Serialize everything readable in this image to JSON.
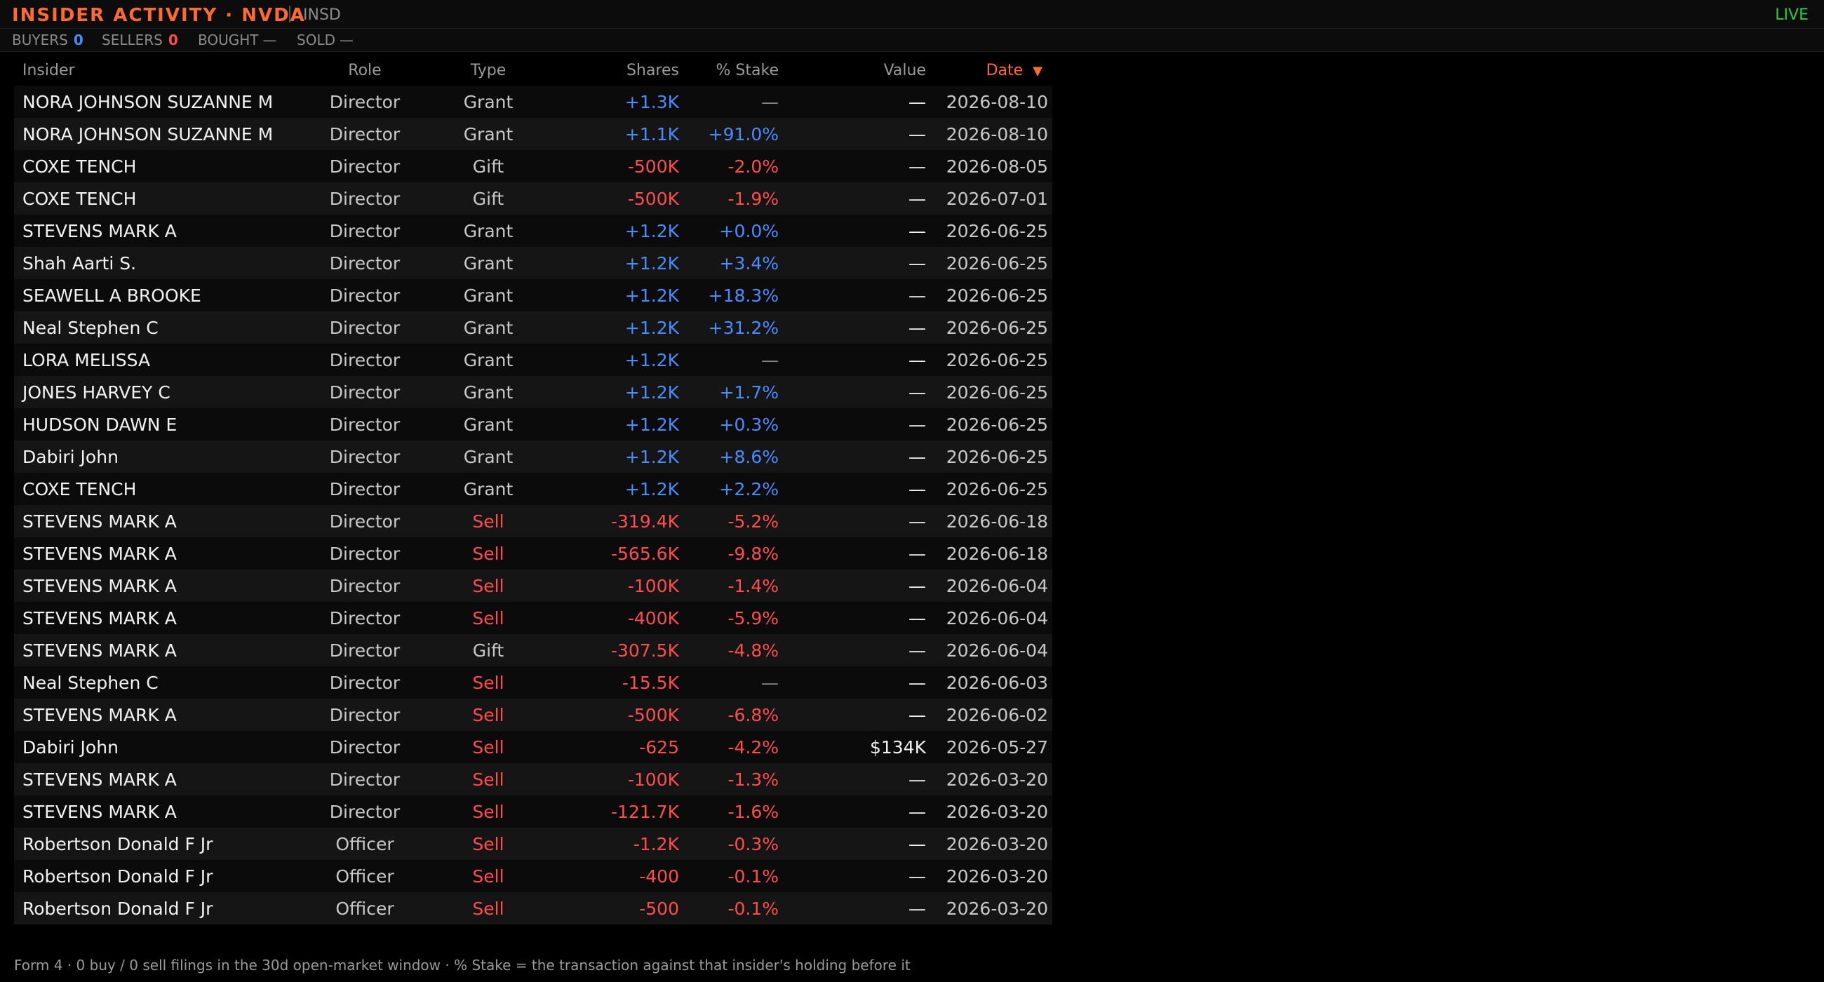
{
  "header": {
    "title": "INSIDER ACTIVITY · NVDA",
    "code": "INSD",
    "status": "LIVE"
  },
  "stats": {
    "buyers_label": "BUYERS",
    "buyers_value": "0",
    "sellers_label": "SELLERS",
    "sellers_value": "0",
    "bought_label": "BOUGHT",
    "bought_value": "—",
    "sold_label": "SOLD",
    "sold_value": "—"
  },
  "table": {
    "columns": {
      "insider": "Insider",
      "role": "Role",
      "type": "Type",
      "shares": "Shares",
      "stake": "% Stake",
      "value": "Value",
      "date": "Date"
    },
    "sort_indicator": "▼",
    "rows": [
      {
        "insider": "NORA JOHNSON SUZANNE M",
        "role": "Director",
        "type": "Grant",
        "shares": "+1.3K",
        "stake": "—",
        "value": "—",
        "date": "2026-08-10"
      },
      {
        "insider": "NORA JOHNSON SUZANNE M",
        "role": "Director",
        "type": "Grant",
        "shares": "+1.1K",
        "stake": "+91.0%",
        "value": "—",
        "date": "2026-08-10"
      },
      {
        "insider": "COXE TENCH",
        "role": "Director",
        "type": "Gift",
        "shares": "-500K",
        "stake": "-2.0%",
        "value": "—",
        "date": "2026-08-05"
      },
      {
        "insider": "COXE TENCH",
        "role": "Director",
        "type": "Gift",
        "shares": "-500K",
        "stake": "-1.9%",
        "value": "—",
        "date": "2026-07-01"
      },
      {
        "insider": "STEVENS MARK A",
        "role": "Director",
        "type": "Grant",
        "shares": "+1.2K",
        "stake": "+0.0%",
        "value": "—",
        "date": "2026-06-25"
      },
      {
        "insider": "Shah Aarti S.",
        "role": "Director",
        "type": "Grant",
        "shares": "+1.2K",
        "stake": "+3.4%",
        "value": "—",
        "date": "2026-06-25"
      },
      {
        "insider": "SEAWELL A BROOKE",
        "role": "Director",
        "type": "Grant",
        "shares": "+1.2K",
        "stake": "+18.3%",
        "value": "—",
        "date": "2026-06-25"
      },
      {
        "insider": "Neal Stephen C",
        "role": "Director",
        "type": "Grant",
        "shares": "+1.2K",
        "stake": "+31.2%",
        "value": "—",
        "date": "2026-06-25"
      },
      {
        "insider": "LORA MELISSA",
        "role": "Director",
        "type": "Grant",
        "shares": "+1.2K",
        "stake": "—",
        "value": "—",
        "date": "2026-06-25"
      },
      {
        "insider": "JONES HARVEY C",
        "role": "Director",
        "type": "Grant",
        "shares": "+1.2K",
        "stake": "+1.7%",
        "value": "—",
        "date": "2026-06-25"
      },
      {
        "insider": "HUDSON DAWN E",
        "role": "Director",
        "type": "Grant",
        "shares": "+1.2K",
        "stake": "+0.3%",
        "value": "—",
        "date": "2026-06-25"
      },
      {
        "insider": "Dabiri John",
        "role": "Director",
        "type": "Grant",
        "shares": "+1.2K",
        "stake": "+8.6%",
        "value": "—",
        "date": "2026-06-25"
      },
      {
        "insider": "COXE TENCH",
        "role": "Director",
        "type": "Grant",
        "shares": "+1.2K",
        "stake": "+2.2%",
        "value": "—",
        "date": "2026-06-25"
      },
      {
        "insider": "STEVENS MARK A",
        "role": "Director",
        "type": "Sell",
        "shares": "-319.4K",
        "stake": "-5.2%",
        "value": "—",
        "date": "2026-06-18"
      },
      {
        "insider": "STEVENS MARK A",
        "role": "Director",
        "type": "Sell",
        "shares": "-565.6K",
        "stake": "-9.8%",
        "value": "—",
        "date": "2026-06-18"
      },
      {
        "insider": "STEVENS MARK A",
        "role": "Director",
        "type": "Sell",
        "shares": "-100K",
        "stake": "-1.4%",
        "value": "—",
        "date": "2026-06-04"
      },
      {
        "insider": "STEVENS MARK A",
        "role": "Director",
        "type": "Sell",
        "shares": "-400K",
        "stake": "-5.9%",
        "value": "—",
        "date": "2026-06-04"
      },
      {
        "insider": "STEVENS MARK A",
        "role": "Director",
        "type": "Gift",
        "shares": "-307.5K",
        "stake": "-4.8%",
        "value": "—",
        "date": "2026-06-04"
      },
      {
        "insider": "Neal Stephen C",
        "role": "Director",
        "type": "Sell",
        "shares": "-15.5K",
        "stake": "—",
        "value": "—",
        "date": "2026-06-03"
      },
      {
        "insider": "STEVENS MARK A",
        "role": "Director",
        "type": "Sell",
        "shares": "-500K",
        "stake": "-6.8%",
        "value": "—",
        "date": "2026-06-02"
      },
      {
        "insider": "Dabiri John",
        "role": "Director",
        "type": "Sell",
        "shares": "-625",
        "stake": "-4.2%",
        "value": "$134K",
        "date": "2026-05-27"
      },
      {
        "insider": "STEVENS MARK A",
        "role": "Director",
        "type": "Sell",
        "shares": "-100K",
        "stake": "-1.3%",
        "value": "—",
        "date": "2026-03-20"
      },
      {
        "insider": "STEVENS MARK A",
        "role": "Director",
        "type": "Sell",
        "shares": "-121.7K",
        "stake": "-1.6%",
        "value": "—",
        "date": "2026-03-20"
      },
      {
        "insider": "Robertson Donald F Jr",
        "role": "Officer",
        "type": "Sell",
        "shares": "-1.2K",
        "stake": "-0.3%",
        "value": "—",
        "date": "2026-03-20"
      },
      {
        "insider": "Robertson Donald F Jr",
        "role": "Officer",
        "type": "Sell",
        "shares": "-400",
        "stake": "-0.1%",
        "value": "—",
        "date": "2026-03-20"
      },
      {
        "insider": "Robertson Donald F Jr",
        "role": "Officer",
        "type": "Sell",
        "shares": "-500",
        "stake": "-0.1%",
        "value": "—",
        "date": "2026-03-20"
      }
    ]
  },
  "footer": "Form 4 · 0 buy / 0 sell filings in the 30d open-market window · % Stake = the transaction against that insider's holding before it",
  "colors": {
    "accent": "#ff6a33",
    "positive": "#4a8cff",
    "negative": "#ff4d4d",
    "live": "#2ecc40"
  }
}
